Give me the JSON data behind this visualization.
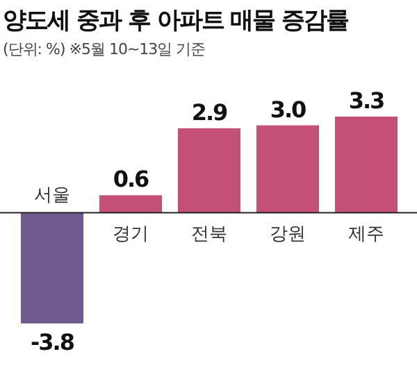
{
  "chart_data": {
    "type": "bar",
    "title": "양도세 중과 후 아파트 매물 증감률",
    "subtitle": "(단위: %)  ※5월 10~13일 기준",
    "categories": [
      "서울",
      "경기",
      "전북",
      "강원",
      "제주"
    ],
    "values": [
      -3.8,
      0.6,
      2.9,
      3.0,
      3.3
    ],
    "colors": [
      "#6f5a8f",
      "#c44f77",
      "#c44f77",
      "#c44f77",
      "#c44f77"
    ],
    "value_labels": [
      "-3.8",
      "0.6",
      "2.9",
      "3.0",
      "3.3"
    ]
  }
}
